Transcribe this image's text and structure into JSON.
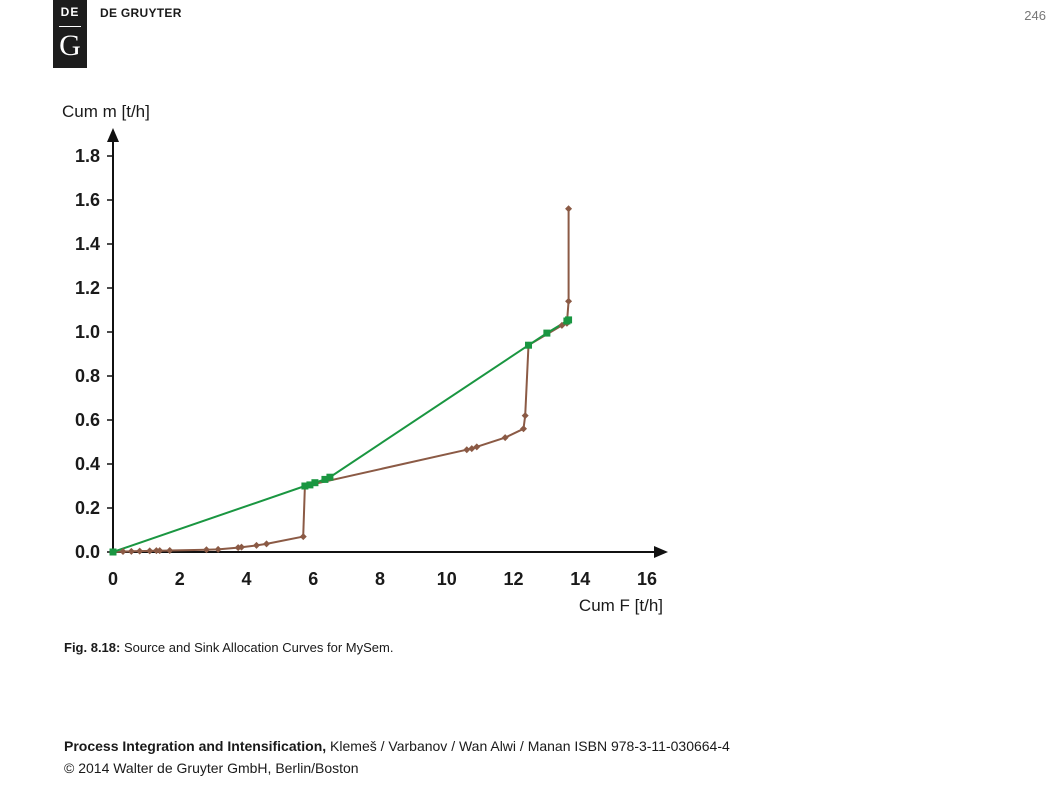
{
  "header": {
    "logo_top": "DE",
    "logo_bottom": "G",
    "publisher": "DE GRUYTER",
    "page_number": "246"
  },
  "chart_data": {
    "type": "line",
    "ylabel": "Cum m [t/h]",
    "xlabel": "Cum F [t/h]",
    "xlim": [
      0,
      16
    ],
    "ylim": [
      0,
      1.8
    ],
    "xticks": [
      "0",
      "2",
      "4",
      "6",
      "8",
      "10",
      "12",
      "14",
      "16"
    ],
    "yticks": [
      "0.0",
      "0.2",
      "0.4",
      "0.6",
      "0.8",
      "1.0",
      "1.2",
      "1.4",
      "1.6",
      "1.8"
    ],
    "grid": false,
    "series": [
      {
        "color": "#8b5a45",
        "marker": "diamond",
        "points": [
          [
            0,
            0
          ],
          [
            0.3,
            0.002
          ],
          [
            0.55,
            0.003
          ],
          [
            0.8,
            0.004
          ],
          [
            1.1,
            0.005
          ],
          [
            1.3,
            0.006
          ],
          [
            1.4,
            0.006
          ],
          [
            1.7,
            0.007
          ],
          [
            2.8,
            0.01
          ],
          [
            3.15,
            0.012
          ],
          [
            3.75,
            0.02
          ],
          [
            3.85,
            0.022
          ],
          [
            4.3,
            0.03
          ],
          [
            4.6,
            0.037
          ],
          [
            5.7,
            0.07
          ],
          [
            5.75,
            0.3
          ],
          [
            10.6,
            0.465
          ],
          [
            10.75,
            0.47
          ],
          [
            10.9,
            0.478
          ],
          [
            11.75,
            0.52
          ],
          [
            12.3,
            0.56
          ],
          [
            12.35,
            0.62
          ],
          [
            12.45,
            0.94
          ],
          [
            13.45,
            1.03
          ],
          [
            13.6,
            1.04
          ],
          [
            13.65,
            1.14
          ],
          [
            13.65,
            1.56
          ]
        ]
      },
      {
        "color": "#1a9641",
        "marker": "square",
        "points": [
          [
            0,
            0
          ],
          [
            5.75,
            0.3
          ],
          [
            5.9,
            0.305
          ],
          [
            6.05,
            0.315
          ],
          [
            6.35,
            0.33
          ],
          [
            6.5,
            0.34
          ],
          [
            12.45,
            0.94
          ],
          [
            13.0,
            0.995
          ],
          [
            13.6,
            1.05
          ],
          [
            13.65,
            1.055
          ]
        ]
      }
    ]
  },
  "caption": {
    "label": "Fig. 8.18:",
    "text": " Source and Sink Allocation Curves for MySem."
  },
  "footer": {
    "book_title": "Process Integration and Intensification,",
    "authors": " Klemeš / Varbanov / Wan Alwi / Manan ISBN 978-3-11-030664-4",
    "copyright": "© 2014 Walter de Gruyter GmbH, Berlin/Boston"
  }
}
